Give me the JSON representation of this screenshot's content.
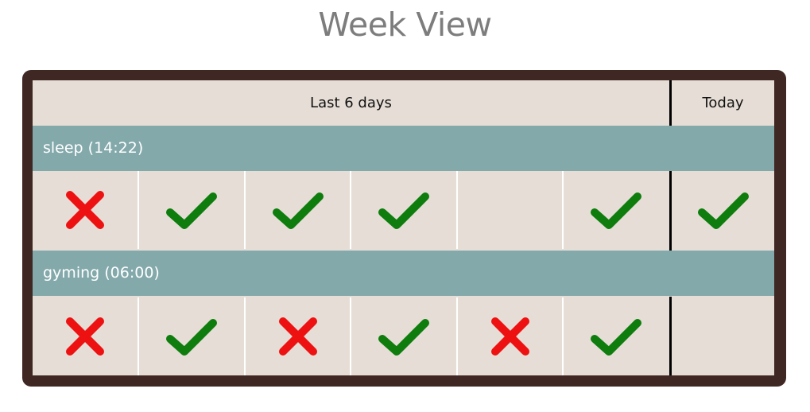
{
  "title": "Week View",
  "header": {
    "last_days_label": "Last 6 days",
    "today_label": "Today"
  },
  "colors": {
    "frame": "#3f2723",
    "background": "#e6ded6",
    "habit_row": "#84a9ab",
    "check": "#0e7d0e",
    "cross": "#ee1111"
  },
  "habits": [
    {
      "label": "sleep (14:22)",
      "days": [
        "cross-icon",
        "check-icon",
        "check-icon",
        "check-icon",
        "",
        "check-icon"
      ],
      "today": "check-icon"
    },
    {
      "label": "gyming (06:00)",
      "days": [
        "cross-icon",
        "check-icon",
        "cross-icon",
        "check-icon",
        "cross-icon",
        "check-icon"
      ],
      "today": ""
    }
  ]
}
